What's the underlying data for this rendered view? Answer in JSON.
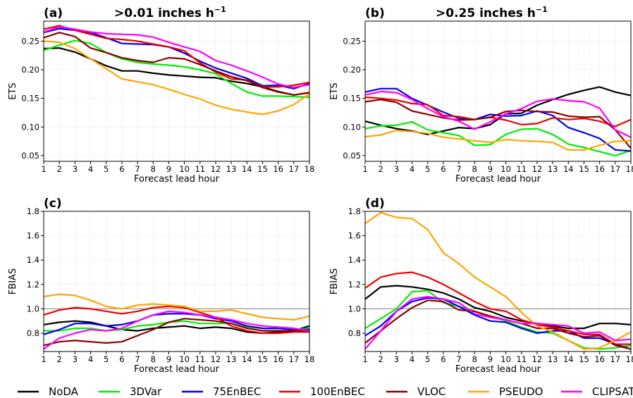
{
  "series_styles": [
    {
      "name": "NoDA",
      "color": "#000000"
    },
    {
      "name": "3DVar",
      "color": "#00ee00"
    },
    {
      "name": "75EnBEC",
      "color": "#0000ee"
    },
    {
      "name": "100EnBEC",
      "color": "#ee0000"
    },
    {
      "name": "VLOC",
      "color": "#8b0000"
    },
    {
      "name": "PSEUDO",
      "color": "#ffa500"
    },
    {
      "name": "CLIPSAT",
      "color": "#ff00ff"
    }
  ],
  "chart_data": [
    {
      "type": "line",
      "panel": "(a)",
      "title": ">0.01 inches h",
      "title_sup": "−1",
      "xlabel": "Forecast lead hour",
      "ylabel": "ETS",
      "x": [
        1,
        2,
        3,
        4,
        5,
        6,
        7,
        8,
        9,
        10,
        11,
        12,
        13,
        14,
        15,
        16,
        17,
        18
      ],
      "xlim": [
        1,
        18
      ],
      "ylim": [
        0.04,
        0.285
      ],
      "yticks": [
        0.05,
        0.1,
        0.15,
        0.2,
        0.25
      ],
      "ytick_labels": [
        "0.05",
        "0.10",
        "0.15",
        "0.20",
        "0.25"
      ],
      "grid": true,
      "series": [
        {
          "name": "NoDA",
          "values": [
            0.237,
            0.238,
            0.231,
            0.219,
            0.207,
            0.198,
            0.198,
            0.194,
            0.191,
            0.189,
            0.187,
            0.186,
            0.18,
            0.176,
            0.17,
            0.162,
            0.156,
            0.16
          ]
        },
        {
          "name": "3DVar",
          "values": [
            0.234,
            0.243,
            0.251,
            0.246,
            0.23,
            0.219,
            0.213,
            0.21,
            0.208,
            0.205,
            0.2,
            0.193,
            0.176,
            0.161,
            0.154,
            0.154,
            0.153,
            0.152
          ]
        },
        {
          "name": "75EnBEC",
          "values": [
            0.265,
            0.272,
            0.269,
            0.265,
            0.256,
            0.246,
            0.245,
            0.244,
            0.24,
            0.229,
            0.215,
            0.203,
            0.194,
            0.185,
            0.172,
            0.173,
            0.167,
            0.176
          ]
        },
        {
          "name": "100EnBEC",
          "values": [
            0.271,
            0.277,
            0.269,
            0.262,
            0.255,
            0.253,
            0.25,
            0.245,
            0.24,
            0.233,
            0.212,
            0.196,
            0.184,
            0.182,
            0.17,
            0.17,
            0.173,
            0.178
          ]
        },
        {
          "name": "VLOC",
          "values": [
            0.256,
            0.265,
            0.258,
            0.238,
            0.23,
            0.221,
            0.216,
            0.213,
            0.221,
            0.219,
            0.209,
            0.198,
            0.188,
            0.181,
            0.169,
            0.161,
            0.156,
            0.16
          ]
        },
        {
          "name": "PSEUDO",
          "values": [
            0.25,
            0.248,
            0.237,
            0.219,
            0.202,
            0.184,
            0.179,
            0.174,
            0.166,
            0.157,
            0.149,
            0.138,
            0.131,
            0.126,
            0.122,
            0.128,
            0.139,
            0.158
          ]
        },
        {
          "name": "CLIPSAT",
          "values": [
            0.266,
            0.275,
            0.271,
            0.266,
            0.263,
            0.262,
            0.261,
            0.257,
            0.248,
            0.24,
            0.232,
            0.216,
            0.208,
            0.198,
            0.187,
            0.175,
            0.169,
            0.174
          ]
        }
      ]
    },
    {
      "type": "line",
      "panel": "(b)",
      "title": ">0.25 inches h",
      "title_sup": "−1",
      "xlabel": "Forecast lead hour",
      "ylabel": "ETS",
      "x": [
        1,
        2,
        3,
        4,
        5,
        6,
        7,
        8,
        9,
        10,
        11,
        12,
        13,
        14,
        15,
        16,
        17,
        18
      ],
      "xlim": [
        1,
        18
      ],
      "ylim": [
        0.04,
        0.285
      ],
      "yticks": [
        0.05,
        0.1,
        0.15,
        0.2,
        0.25
      ],
      "ytick_labels": [
        "0.05",
        "0.10",
        "0.15",
        "0.20",
        "0.25"
      ],
      "grid": true,
      "series": [
        {
          "name": "NoDA",
          "values": [
            0.11,
            0.103,
            0.097,
            0.093,
            0.087,
            0.093,
            0.099,
            0.097,
            0.104,
            0.123,
            0.124,
            0.138,
            0.148,
            0.157,
            0.164,
            0.17,
            0.161,
            0.155
          ]
        },
        {
          "name": "3DVar",
          "values": [
            0.097,
            0.102,
            0.103,
            0.109,
            0.095,
            0.09,
            0.085,
            0.068,
            0.069,
            0.087,
            0.096,
            0.097,
            0.087,
            0.07,
            0.064,
            0.057,
            0.05,
            0.059
          ]
        },
        {
          "name": "75EnBEC",
          "values": [
            0.161,
            0.167,
            0.167,
            0.15,
            0.138,
            0.126,
            0.115,
            0.113,
            0.122,
            0.119,
            0.12,
            0.128,
            0.12,
            0.099,
            0.09,
            0.08,
            0.06,
            0.058
          ]
        },
        {
          "name": "100EnBEC",
          "values": [
            0.152,
            0.15,
            0.147,
            0.141,
            0.139,
            0.12,
            0.118,
            0.113,
            0.117,
            0.112,
            0.104,
            0.106,
            0.116,
            0.113,
            0.115,
            0.11,
            0.101,
            0.113
          ]
        },
        {
          "name": "VLOC",
          "values": [
            0.144,
            0.148,
            0.143,
            0.128,
            0.122,
            0.116,
            0.112,
            0.113,
            0.117,
            0.127,
            0.129,
            0.127,
            0.126,
            0.119,
            0.117,
            0.118,
            0.095,
            0.063
          ]
        },
        {
          "name": "PSEUDO",
          "values": [
            0.083,
            0.086,
            0.094,
            0.092,
            0.089,
            0.082,
            0.079,
            0.076,
            0.073,
            0.078,
            0.076,
            0.075,
            0.073,
            0.06,
            0.06,
            0.068,
            0.075,
            0.076
          ]
        },
        {
          "name": "CLIPSAT",
          "values": [
            0.156,
            0.162,
            0.16,
            0.148,
            0.132,
            0.118,
            0.11,
            0.096,
            0.109,
            0.123,
            0.132,
            0.145,
            0.149,
            0.146,
            0.144,
            0.133,
            0.095,
            0.082
          ]
        }
      ]
    },
    {
      "type": "line",
      "panel": "(c)",
      "title": "",
      "title_sup": "",
      "xlabel": "Forecast lead hour",
      "ylabel": "FBIAS",
      "x": [
        1,
        2,
        3,
        4,
        5,
        6,
        7,
        8,
        9,
        10,
        11,
        12,
        13,
        14,
        15,
        16,
        17,
        18
      ],
      "xlim": [
        1,
        18
      ],
      "ylim": [
        0.65,
        1.8
      ],
      "yticks": [
        0.8,
        1.0,
        1.2,
        1.4,
        1.6,
        1.8
      ],
      "ytick_labels": [
        "0.8",
        "1.0",
        "1.2",
        "1.4",
        "1.6",
        "1.8"
      ],
      "reference_line": 1.0,
      "grid": true,
      "series": [
        {
          "name": "NoDA",
          "values": [
            0.87,
            0.89,
            0.9,
            0.89,
            0.86,
            0.83,
            0.82,
            0.84,
            0.85,
            0.86,
            0.84,
            0.85,
            0.84,
            0.81,
            0.8,
            0.81,
            0.82,
            0.86
          ]
        },
        {
          "name": "3DVar",
          "values": [
            0.82,
            0.82,
            0.84,
            0.84,
            0.82,
            0.83,
            0.86,
            0.87,
            0.89,
            0.9,
            0.88,
            0.88,
            0.88,
            0.85,
            0.84,
            0.84,
            0.83,
            0.84
          ]
        },
        {
          "name": "75EnBEC",
          "values": [
            0.79,
            0.83,
            0.88,
            0.88,
            0.86,
            0.87,
            0.9,
            0.95,
            0.96,
            0.96,
            0.95,
            0.92,
            0.9,
            0.86,
            0.84,
            0.84,
            0.83,
            0.83
          ]
        },
        {
          "name": "100EnBEC",
          "values": [
            0.95,
            0.99,
            1.01,
            1.0,
            0.98,
            0.96,
            0.98,
            1.01,
            1.02,
            1.01,
            0.97,
            0.93,
            0.86,
            0.82,
            0.8,
            0.8,
            0.81,
            0.81
          ]
        },
        {
          "name": "VLOC",
          "values": [
            0.7,
            0.73,
            0.74,
            0.73,
            0.72,
            0.73,
            0.78,
            0.83,
            0.89,
            0.92,
            0.91,
            0.9,
            0.88,
            0.84,
            0.82,
            0.82,
            0.82,
            0.82
          ]
        },
        {
          "name": "PSEUDO",
          "values": [
            1.1,
            1.12,
            1.11,
            1.07,
            1.02,
            1.0,
            1.03,
            1.04,
            1.03,
            1.02,
            0.98,
            0.98,
            0.99,
            0.96,
            0.93,
            0.92,
            0.91,
            0.94
          ]
        },
        {
          "name": "CLIPSAT",
          "values": [
            0.67,
            0.76,
            0.8,
            0.83,
            0.82,
            0.84,
            0.9,
            0.95,
            0.98,
            0.97,
            0.95,
            0.93,
            0.91,
            0.88,
            0.86,
            0.85,
            0.84,
            0.82
          ]
        }
      ]
    },
    {
      "type": "line",
      "panel": "(d)",
      "title": "",
      "title_sup": "",
      "xlabel": "Forecast lead hour",
      "ylabel": "FBIAS",
      "x": [
        1,
        2,
        3,
        4,
        5,
        6,
        7,
        8,
        9,
        10,
        11,
        12,
        13,
        14,
        15,
        16,
        17,
        18
      ],
      "xlim": [
        1,
        18
      ],
      "ylim": [
        0.65,
        1.8
      ],
      "yticks": [
        0.8,
        1.0,
        1.2,
        1.4,
        1.6,
        1.8
      ],
      "ytick_labels": [
        "0.8",
        "1.0",
        "1.2",
        "1.4",
        "1.6",
        "1.8"
      ],
      "reference_line": 1.0,
      "grid": true,
      "series": [
        {
          "name": "NoDA",
          "values": [
            1.08,
            1.18,
            1.19,
            1.18,
            1.16,
            1.13,
            1.08,
            1.01,
            0.98,
            0.93,
            0.9,
            0.88,
            0.86,
            0.84,
            0.84,
            0.88,
            0.88,
            0.87
          ]
        },
        {
          "name": "3DVar",
          "values": [
            0.84,
            0.92,
            1.0,
            1.14,
            1.15,
            1.05,
            1.02,
            0.98,
            0.94,
            0.9,
            0.85,
            0.81,
            0.8,
            0.74,
            0.68,
            0.67,
            0.68,
            0.7
          ]
        },
        {
          "name": "75EnBEC",
          "values": [
            0.78,
            0.86,
            0.98,
            1.06,
            1.09,
            1.08,
            1.02,
            0.95,
            0.9,
            0.89,
            0.84,
            0.8,
            0.82,
            0.82,
            0.76,
            0.76,
            0.71,
            0.67
          ]
        },
        {
          "name": "100EnBEC",
          "values": [
            1.17,
            1.26,
            1.29,
            1.3,
            1.26,
            1.2,
            1.13,
            1.06,
            1.0,
            0.98,
            0.91,
            0.87,
            0.85,
            0.82,
            0.79,
            0.79,
            0.71,
            0.71
          ]
        },
        {
          "name": "VLOC",
          "values": [
            0.72,
            0.82,
            0.92,
            1.01,
            1.07,
            1.06,
            0.99,
            0.98,
            0.94,
            0.91,
            0.88,
            0.84,
            0.84,
            0.8,
            0.77,
            0.78,
            0.7,
            0.67
          ]
        },
        {
          "name": "PSEUDO",
          "values": [
            1.7,
            1.79,
            1.75,
            1.74,
            1.65,
            1.46,
            1.37,
            1.26,
            1.18,
            1.1,
            0.97,
            0.86,
            0.81,
            0.74,
            0.67,
            0.68,
            0.74,
            0.81
          ]
        },
        {
          "name": "CLIPSAT",
          "values": [
            0.67,
            0.82,
            0.98,
            1.08,
            1.1,
            1.08,
            1.05,
            0.96,
            0.93,
            0.91,
            0.88,
            0.88,
            0.87,
            0.86,
            0.8,
            0.81,
            0.74,
            0.75
          ]
        }
      ]
    }
  ]
}
